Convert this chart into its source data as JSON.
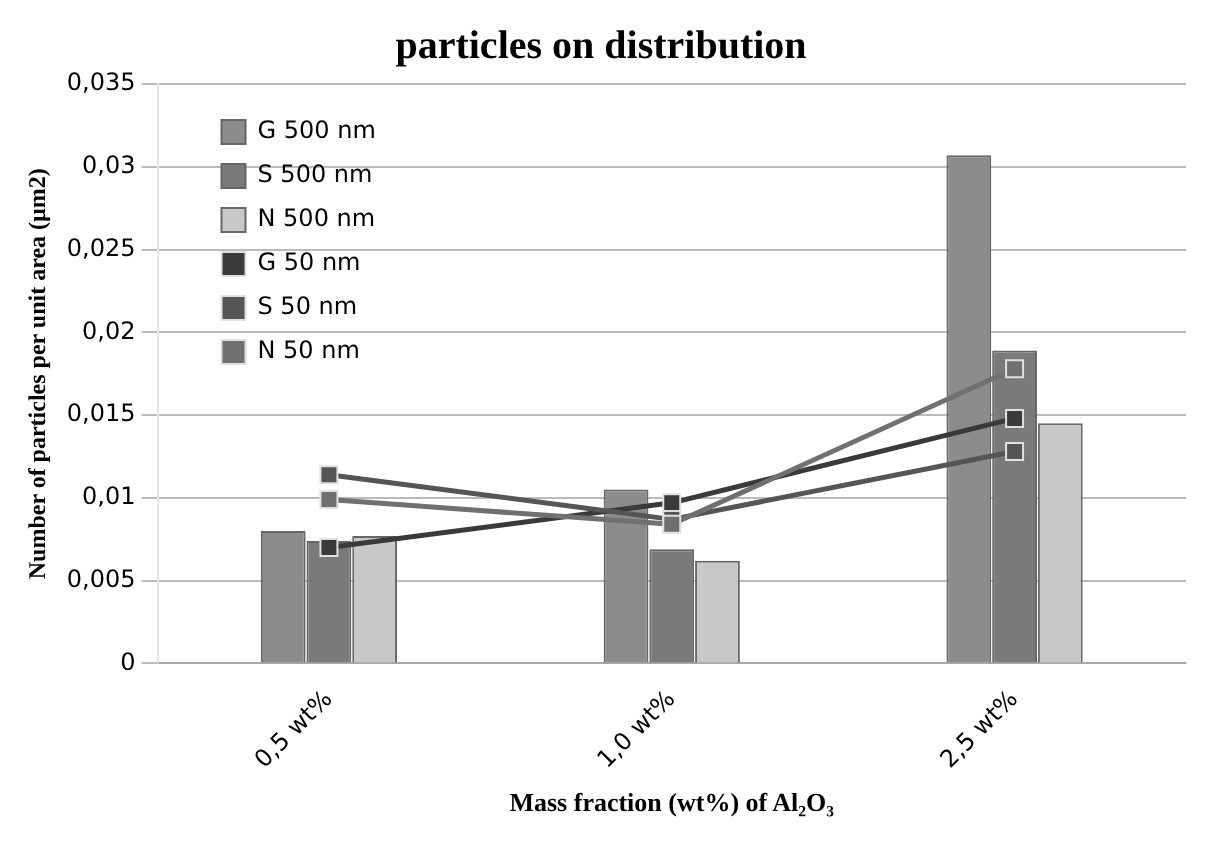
{
  "chart_data": {
    "type": "bar",
    "title": "particles on distribution",
    "xlabel": "Mass fraction (wt%) of Al₂O₃",
    "ylabel": "Number of particles per unit area (µm2)",
    "categories": [
      "0,5 wt%",
      "1,0 wt%",
      "2,5 wt%"
    ],
    "series": [
      {
        "name": "G 500 nm",
        "type": "bar",
        "color": "#8c8c8c",
        "values": [
          0.008,
          0.0105,
          0.0307
        ]
      },
      {
        "name": "S 500 nm",
        "type": "bar",
        "color": "#7a7a7a",
        "values": [
          0.0074,
          0.0069,
          0.0189
        ]
      },
      {
        "name": "N 500 nm",
        "type": "bar",
        "color": "#c8c8c8",
        "values": [
          0.0077,
          0.0062,
          0.0145
        ]
      },
      {
        "name": "G 50 nm",
        "type": "line",
        "color": "#3a3a3a",
        "values": [
          0.007,
          0.0097,
          0.0148
        ]
      },
      {
        "name": "S 50 nm",
        "type": "line",
        "color": "#555555",
        "values": [
          0.0114,
          0.0087,
          0.0128
        ]
      },
      {
        "name": "N 50 nm",
        "type": "line",
        "color": "#707070",
        "values": [
          0.0099,
          0.0084,
          0.0178
        ]
      }
    ],
    "ylim": [
      0,
      0.035
    ],
    "yticks": [
      {
        "value": 0,
        "label": "0"
      },
      {
        "value": 0.005,
        "label": "0,005"
      },
      {
        "value": 0.01,
        "label": "0,01"
      },
      {
        "value": 0.015,
        "label": "0,015"
      },
      {
        "value": 0.02,
        "label": "0,02"
      },
      {
        "value": 0.025,
        "label": "0,025"
      },
      {
        "value": 0.03,
        "label": "0,03"
      },
      {
        "value": 0.035,
        "label": "0,035"
      }
    ],
    "grid": "y",
    "legend": "top left",
    "marker": "square"
  }
}
